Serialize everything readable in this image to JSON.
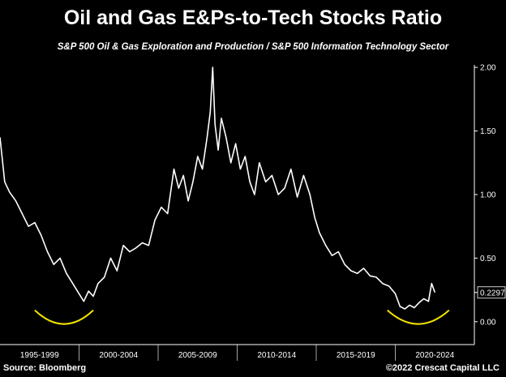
{
  "title": "Oil and Gas E&Ps-to-Tech Stocks Ratio",
  "subtitle": "S&P 500 Oil & Gas Exploration and Production / S&P 500 Information Technology Sector",
  "source": "Source: Bloomberg",
  "copyright": "©2022 Crescat Capital LLC",
  "colors": {
    "background": "#000000",
    "line": "#ffffff",
    "highlight_arc": "#f2e200"
  },
  "chart_data": {
    "type": "line",
    "title": "Oil and Gas E&Ps-to-Tech Stocks Ratio",
    "subtitle": "S&P 500 Oil & Gas Exploration and Production / S&P 500 Information Technology Sector",
    "categories": [
      "1995-1999",
      "2000-2004",
      "2005-2009",
      "2010-2014",
      "2015-2019",
      "2020-2024"
    ],
    "y_ticks": [
      "2.00",
      "1.50",
      "1.00",
      "0.50",
      "0.00"
    ],
    "ylim": [
      -0.18,
      2.02
    ],
    "xlim": [
      1995.0,
      2025.0
    ],
    "last_value_label": "0.2297",
    "annotations": [
      "yellow arc highlighting the 1999-2000 low",
      "yellow arc highlighting the 2020-2022 low"
    ],
    "series": [
      {
        "x": [
          1995.0,
          1995.3,
          1995.6,
          1996.0,
          1996.4,
          1996.8,
          1997.2,
          1997.6,
          1998.0,
          1998.4,
          1998.8,
          1999.2,
          1999.6,
          2000.0,
          2000.3,
          2000.6,
          2000.9,
          2001.2,
          2001.6,
          2002.0,
          2002.4,
          2002.8,
          2003.2,
          2003.6,
          2004.0,
          2004.4,
          2004.8,
          2005.2,
          2005.6,
          2006.0,
          2006.3,
          2006.6,
          2006.9,
          2007.2,
          2007.5,
          2007.8,
          2008.1,
          2008.3,
          2008.45,
          2008.6,
          2008.8,
          2009.0,
          2009.3,
          2009.6,
          2009.9,
          2010.2,
          2010.5,
          2010.8,
          2011.1,
          2011.4,
          2011.8,
          2012.2,
          2012.6,
          2013.0,
          2013.4,
          2013.8,
          2014.2,
          2014.6,
          2014.9,
          2015.2,
          2015.6,
          2016.0,
          2016.4,
          2016.8,
          2017.2,
          2017.6,
          2018.0,
          2018.4,
          2018.8,
          2019.2,
          2019.6,
          2020.0,
          2020.3,
          2020.6,
          2020.9,
          2021.2,
          2021.5,
          2021.8,
          2022.1,
          2022.3,
          2022.5
        ],
        "y": [
          1.45,
          1.1,
          1.02,
          0.95,
          0.85,
          0.75,
          0.78,
          0.68,
          0.55,
          0.45,
          0.5,
          0.38,
          0.3,
          0.22,
          0.16,
          0.24,
          0.2,
          0.3,
          0.35,
          0.5,
          0.4,
          0.6,
          0.55,
          0.58,
          0.62,
          0.6,
          0.8,
          0.9,
          0.85,
          1.2,
          1.05,
          1.15,
          0.95,
          1.1,
          1.3,
          1.2,
          1.45,
          1.65,
          2.0,
          1.55,
          1.35,
          1.6,
          1.45,
          1.25,
          1.4,
          1.2,
          1.3,
          1.1,
          1.0,
          1.25,
          1.1,
          1.15,
          1.0,
          1.05,
          1.2,
          0.98,
          1.15,
          1.0,
          0.82,
          0.7,
          0.6,
          0.52,
          0.55,
          0.45,
          0.4,
          0.38,
          0.42,
          0.36,
          0.35,
          0.3,
          0.28,
          0.22,
          0.12,
          0.1,
          0.13,
          0.11,
          0.15,
          0.18,
          0.16,
          0.3,
          0.23
        ]
      }
    ]
  }
}
